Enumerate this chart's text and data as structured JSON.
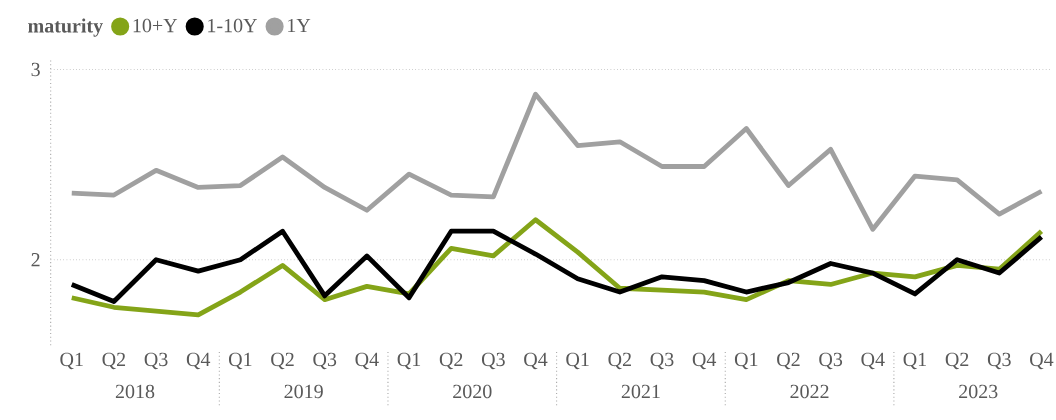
{
  "chart_data": {
    "type": "line",
    "legend_title": "maturity",
    "legend": "top left",
    "grid": "y",
    "line_style": "solid",
    "marker": "none",
    "categories": [
      "Q1",
      "Q2",
      "Q3",
      "Q4",
      "Q1",
      "Q2",
      "Q3",
      "Q4",
      "Q1",
      "Q2",
      "Q3",
      "Q4",
      "Q1",
      "Q2",
      "Q3",
      "Q4",
      "Q1",
      "Q2",
      "Q3",
      "Q4",
      "Q1",
      "Q2",
      "Q3",
      "Q4"
    ],
    "annotations": [
      "2018",
      "2019",
      "2020",
      "2021",
      "2022",
      "2023"
    ],
    "ylim": [
      1.55,
      3.05
    ],
    "yticks": [
      2,
      3
    ],
    "series": [
      {
        "name": "10+Y",
        "color": "#84a418",
        "values": [
          1.8,
          1.75,
          1.73,
          1.71,
          1.83,
          1.97,
          1.79,
          1.86,
          1.82,
          2.06,
          2.02,
          2.21,
          2.04,
          1.85,
          1.84,
          1.83,
          1.79,
          1.89,
          1.87,
          1.93,
          1.91,
          1.97,
          1.95,
          2.15
        ]
      },
      {
        "name": "1-10Y",
        "color": "#000000",
        "values": [
          1.87,
          1.78,
          2.0,
          1.94,
          2.0,
          2.15,
          1.81,
          2.02,
          1.8,
          2.15,
          2.15,
          2.03,
          1.9,
          1.83,
          1.91,
          1.89,
          1.83,
          1.88,
          1.98,
          1.93,
          1.82,
          2.0,
          1.93,
          2.12
        ]
      },
      {
        "name": "1Y",
        "color": "#a0a0a0",
        "values": [
          2.35,
          2.34,
          2.47,
          2.38,
          2.39,
          2.54,
          2.38,
          2.26,
          2.45,
          2.34,
          2.33,
          2.87,
          2.6,
          2.62,
          2.49,
          2.49,
          2.69,
          2.39,
          2.58,
          2.16,
          2.44,
          2.42,
          2.24,
          2.36
        ]
      }
    ]
  }
}
